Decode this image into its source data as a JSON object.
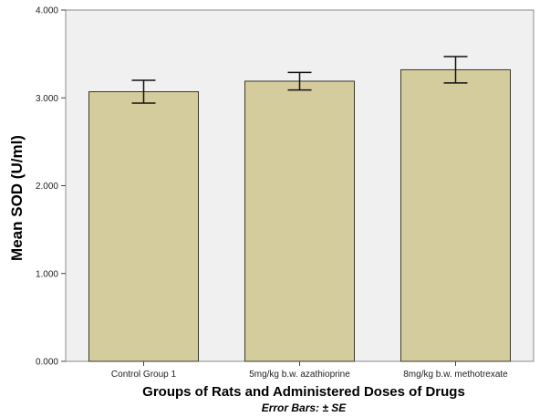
{
  "chart_data": {
    "type": "bar",
    "title": "",
    "xlabel": "Groups of Rats and Administered Doses of Drugs",
    "ylabel": "Mean SOD (U/ml)",
    "note": "Error Bars: ± SE",
    "categories": [
      "Control Group 1",
      "5mg/kg b.w. azathioprine",
      "8mg/kg b.w. methotrexate"
    ],
    "values": [
      3.07,
      3.19,
      3.32
    ],
    "error": [
      0.13,
      0.1,
      0.15
    ],
    "ylim": [
      0,
      4.0
    ],
    "yticks": [
      "0.000",
      "1.000",
      "2.000",
      "3.000",
      "4.000"
    ],
    "ytick_values": [
      0,
      1,
      2,
      3,
      4
    ],
    "grid": false,
    "colors": {
      "bar_fill": "#d4cc9c",
      "bar_stroke": "#3a3a2a",
      "plot_bg": "#f0f0f0",
      "frame": "#8c8c8c"
    }
  }
}
